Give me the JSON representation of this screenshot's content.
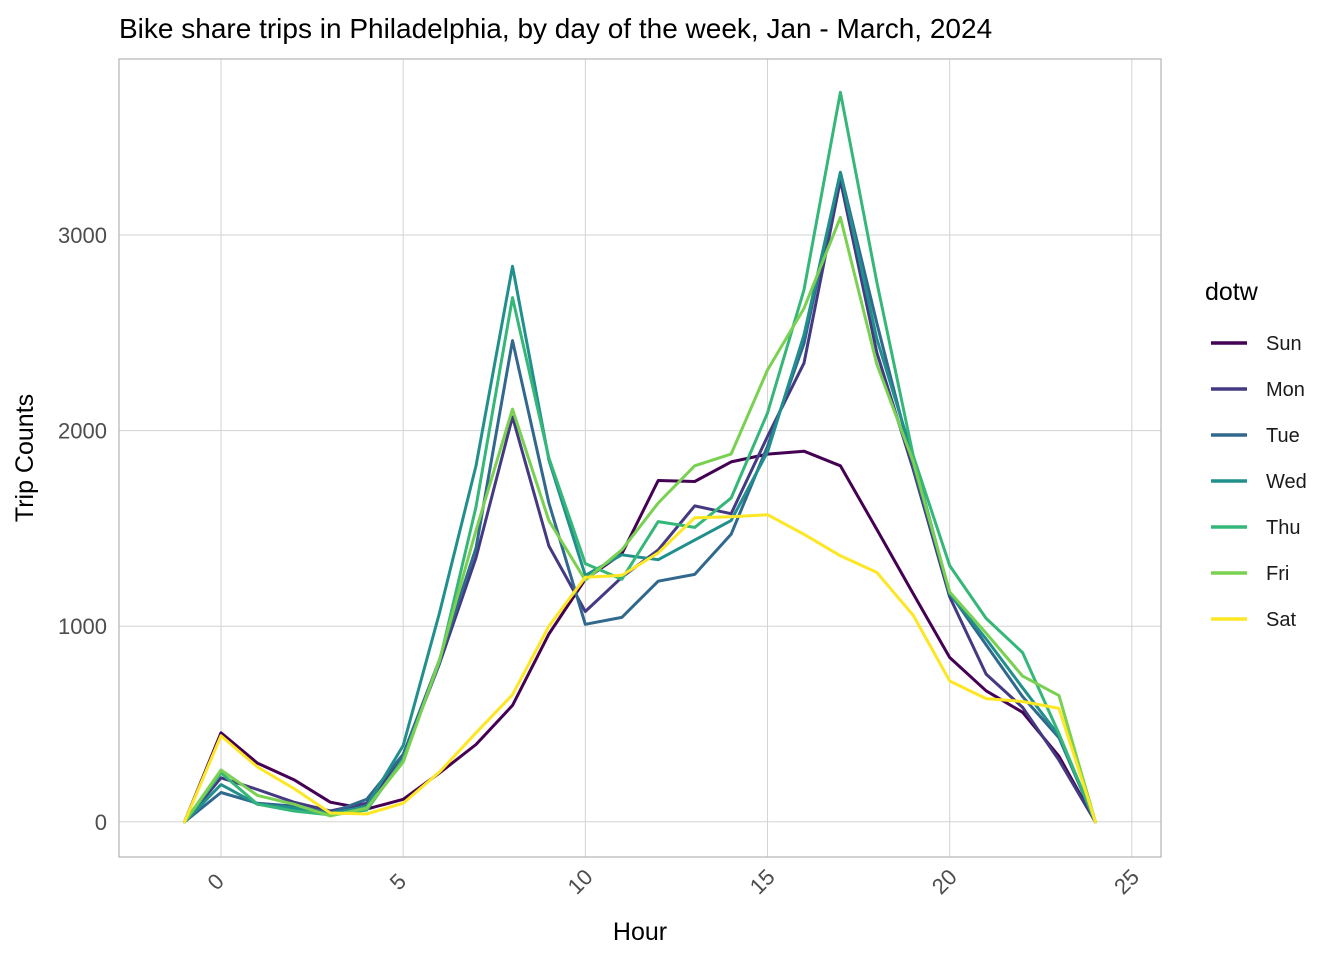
{
  "chart_data": {
    "type": "line",
    "title": "Bike share trips in Philadelphia, by day of the week, Jan - March, 2024",
    "xlabel": "Hour",
    "ylabel": "Trip Counts",
    "xlim": [
      -2.8,
      25.8
    ],
    "ylim": [
      -180,
      3900
    ],
    "x_ticks": [
      0,
      5,
      10,
      15,
      20,
      25
    ],
    "y_ticks": [
      0,
      1000,
      2000,
      3000
    ],
    "grid": true,
    "legend": {
      "title": "dotw",
      "position": "right"
    },
    "x": [
      -1,
      0,
      1,
      2,
      3,
      4,
      5,
      6,
      7,
      8,
      9,
      10,
      11,
      12,
      13,
      14,
      15,
      16,
      17,
      18,
      19,
      20,
      21,
      22,
      23,
      24
    ],
    "series": [
      {
        "name": "Sun",
        "color": "#440154",
        "values": [
          0,
          455,
          300,
          215,
          100,
          65,
          115,
          250,
          395,
          595,
          960,
          1240,
          1370,
          1745,
          1740,
          1840,
          1880,
          1895,
          1820,
          1495,
          1165,
          840,
          670,
          560,
          335,
          0
        ]
      },
      {
        "name": "Mon",
        "color": "#443A83",
        "values": [
          0,
          225,
          165,
          100,
          55,
          95,
          330,
          810,
          1350,
          2070,
          1410,
          1075,
          1250,
          1390,
          1615,
          1575,
          1970,
          2345,
          3280,
          2400,
          1800,
          1150,
          755,
          585,
          315,
          0
        ]
      },
      {
        "name": "Tue",
        "color": "#31688E",
        "values": [
          0,
          150,
          95,
          80,
          45,
          115,
          345,
          830,
          1400,
          2460,
          1630,
          1010,
          1045,
          1230,
          1265,
          1470,
          1920,
          2445,
          3320,
          2550,
          1820,
          1170,
          905,
          640,
          430,
          0
        ]
      },
      {
        "name": "Wed",
        "color": "#21908C",
        "values": [
          0,
          190,
          90,
          70,
          40,
          80,
          390,
          1070,
          1820,
          2840,
          1850,
          1260,
          1365,
          1340,
          1440,
          1540,
          1890,
          2490,
          3320,
          2470,
          1860,
          1165,
          935,
          685,
          440,
          0
        ]
      },
      {
        "name": "Thu",
        "color": "#35B779",
        "values": [
          0,
          250,
          90,
          55,
          35,
          60,
          320,
          820,
          1610,
          2680,
          1860,
          1320,
          1240,
          1535,
          1505,
          1655,
          2090,
          2720,
          3730,
          2760,
          1870,
          1310,
          1040,
          865,
          450,
          0
        ]
      },
      {
        "name": "Fri",
        "color": "#7AD151",
        "values": [
          0,
          265,
          135,
          90,
          30,
          70,
          305,
          830,
          1490,
          2110,
          1540,
          1235,
          1390,
          1630,
          1820,
          1880,
          2310,
          2625,
          3090,
          2340,
          1840,
          1175,
          965,
          745,
          645,
          0
        ]
      },
      {
        "name": "Sat",
        "color": "#FDE725",
        "values": [
          0,
          440,
          280,
          170,
          45,
          40,
          95,
          255,
          455,
          650,
          1000,
          1250,
          1260,
          1375,
          1555,
          1560,
          1570,
          1470,
          1360,
          1275,
          1055,
          720,
          630,
          615,
          580,
          0
        ]
      }
    ]
  }
}
